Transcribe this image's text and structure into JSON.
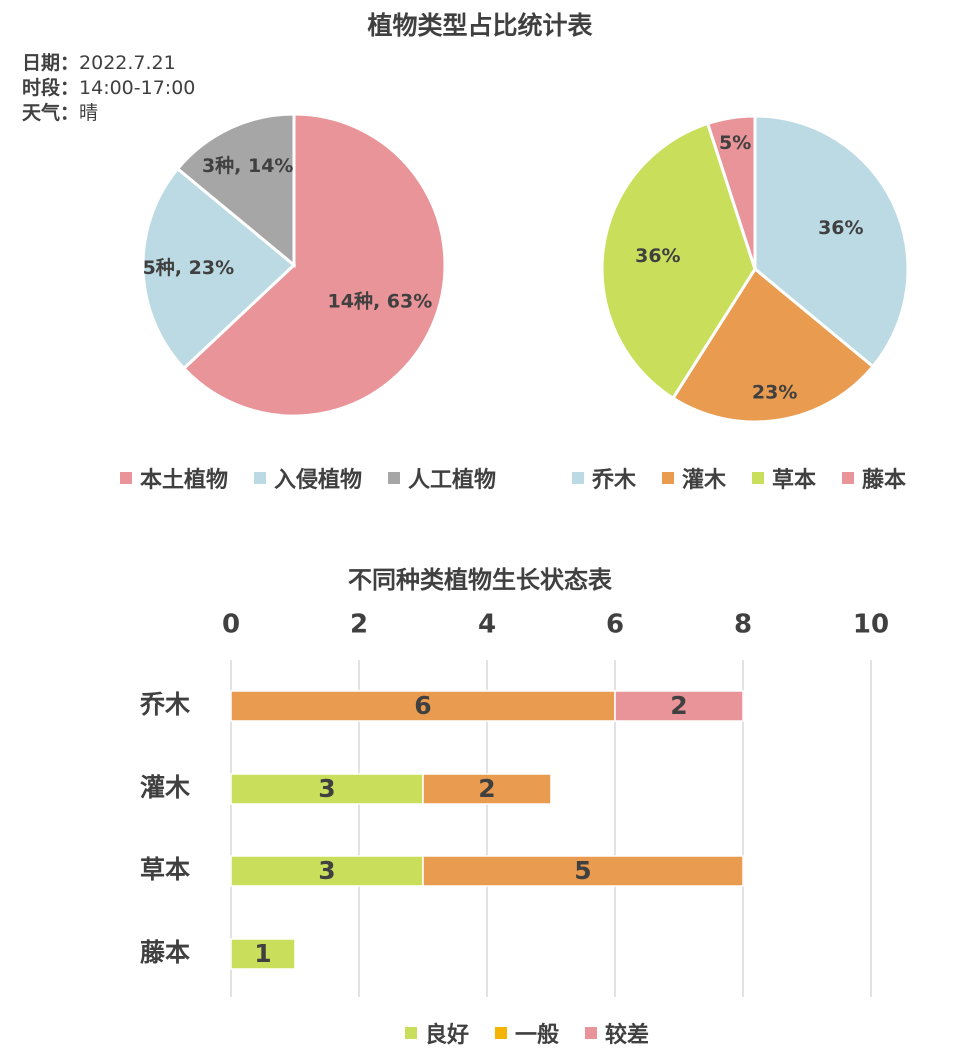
{
  "title_top": "植物类型占比统计表",
  "meta": [
    {
      "key": "日期：",
      "value": "2022.7.21"
    },
    {
      "key": "时段：",
      "value": "14:00-17:00"
    },
    {
      "key": "天气：",
      "value": "晴"
    }
  ],
  "legend_left": [
    {
      "label": "本土植物",
      "color": "#e89498"
    },
    {
      "label": "入侵植物",
      "color": "#bcdae3"
    },
    {
      "label": "人工植物",
      "color": "#a6a6a6"
    }
  ],
  "legend_right": [
    {
      "label": "乔木",
      "color": "#bcdae3"
    },
    {
      "label": "灌木",
      "color": "#e99b4f"
    },
    {
      "label": "草本",
      "color": "#c9df5c"
    },
    {
      "label": "藤本",
      "color": "#e89498"
    }
  ],
  "title_bottom": "不同种类植物生长状态表",
  "legend_bottom": [
    {
      "label": "良好",
      "color": "#c9df5c"
    },
    {
      "label": "一般",
      "color": "#f5b400"
    },
    {
      "label": "较差",
      "color": "#e89498"
    }
  ],
  "chart_data": [
    {
      "type": "pie",
      "categories": [
        "本土植物",
        "入侵植物",
        "人工植物"
      ],
      "values": [
        63,
        23,
        14
      ],
      "labels": [
        "14种, 63%",
        "5种, 23%",
        "3种, 14%"
      ],
      "colors": [
        "#e89498",
        "#bcdae3",
        "#a6a6a6"
      ]
    },
    {
      "type": "pie",
      "categories": [
        "乔木",
        "灌木",
        "草本",
        "藤本"
      ],
      "values": [
        36,
        23,
        36,
        5
      ],
      "labels": [
        "36%",
        "23%",
        "36%",
        "5%"
      ],
      "colors": [
        "#bcdae3",
        "#e99b4f",
        "#c9df5c",
        "#e89498"
      ]
    },
    {
      "type": "bar",
      "orientation": "horizontal",
      "stacked": true,
      "title": "不同种类植物生长状态表",
      "categories": [
        "乔木",
        "灌木",
        "草本",
        "藤本"
      ],
      "series": [
        {
          "name": "良好",
          "color": "#c9df5c",
          "values": [
            0,
            3,
            3,
            1
          ]
        },
        {
          "name": "一般",
          "color": "#e99b4f",
          "values": [
            6,
            2,
            5,
            0
          ]
        },
        {
          "name": "较差",
          "color": "#e89498",
          "values": [
            2,
            0,
            0,
            0
          ]
        }
      ],
      "xlim": [
        0,
        10
      ],
      "x_ticks": [
        "0",
        "2",
        "4",
        "6",
        "8",
        "10"
      ],
      "axis_position": "top",
      "grid": true,
      "legend": "bottom"
    }
  ]
}
